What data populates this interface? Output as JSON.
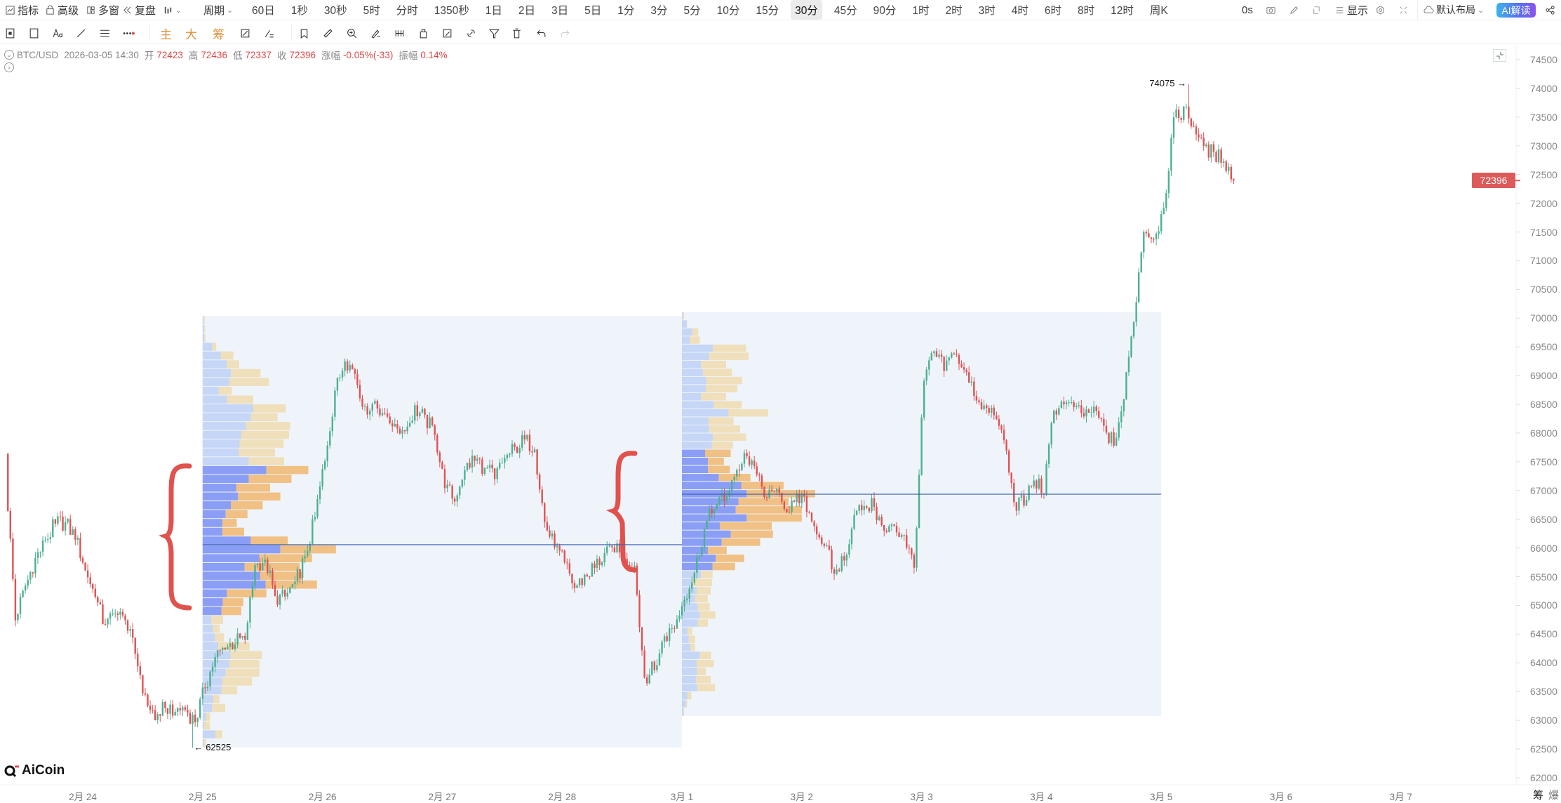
{
  "toolbar": {
    "indicators": "指标",
    "advanced": "高级",
    "multi_window": "多窗",
    "replay": "复盘",
    "period_label": "周期",
    "periods": [
      "60日",
      "1秒",
      "30秒",
      "5时",
      "分时",
      "1350秒",
      "1日",
      "2日",
      "3日",
      "5日",
      "1分",
      "3分",
      "5分",
      "10分",
      "15分",
      "30分",
      "45分",
      "90分",
      "1时",
      "2时",
      "3时",
      "4时",
      "6时",
      "8时",
      "12时",
      "周K"
    ],
    "selected_period": "30分",
    "countdown": "0s",
    "display": "显示",
    "layout": "默认布局",
    "ai": "AI解读"
  },
  "drawing_toolbar": {
    "main": "主",
    "big": "大",
    "chips": "筹"
  },
  "info": {
    "symbol": "BTC/USD",
    "datetime": "2026-03-05 14:30",
    "open_label": "开",
    "open": "72423",
    "high_label": "高",
    "high": "72436",
    "low_label": "低",
    "low": "72337",
    "close_label": "收",
    "close": "72396",
    "change_label": "涨幅",
    "change": "-0.05%(-33)",
    "amplitude_label": "振幅",
    "amplitude": "0.14%"
  },
  "logo": "AiCoin",
  "bottom_right": [
    "筹",
    "爆"
  ],
  "colors": {
    "up": "#4cb08f",
    "down": "#e05252",
    "price_tag": "#dd5a5a",
    "poc_line": "#3b5fae",
    "profile_bg": "#eff4fb",
    "buy_va": "#8b9ef6",
    "buy": "#c5d6f6",
    "sell_va": "#f0c084",
    "sell": "#efdfbb",
    "annotation": "#e0524e"
  },
  "chart_data": {
    "type": "candlestick",
    "symbol": "BTC/USD",
    "interval": "30m",
    "path_start": "2026-02-23 08:30",
    "path_step": "2h",
    "closes": [
      67390,
      64790,
      65310,
      65830,
      66090,
      66440,
      66440,
      66180,
      65660,
      65140,
      64620,
      64880,
      64710,
      64180,
      63400,
      63060,
      63230,
      63200,
      63200,
      62970,
      63580,
      64100,
      64270,
      64360,
      64440,
      65660,
      65830,
      65140,
      65140,
      65400,
      65830,
      66520,
      67560,
      68690,
      69300,
      69040,
      68430,
      68520,
      68340,
      68170,
      68000,
      68430,
      68260,
      68000,
      67040,
      66870,
      67390,
      67560,
      67390,
      67250,
      67530,
      67740,
      67880,
      67740,
      66440,
      66010,
      65740,
      65310,
      65480,
      65690,
      65860,
      65970,
      65830,
      65660,
      63750,
      63920,
      64440,
      64620,
      65140,
      65570,
      66350,
      66700,
      66870,
      67220,
      67650,
      67390,
      66870,
      66960,
      66700,
      66780,
      66870,
      66350,
      66090,
      65570,
      65830,
      66520,
      66780,
      66700,
      66260,
      66350,
      66210,
      65660,
      68950,
      69380,
      69120,
      69380,
      69120,
      68690,
      68430,
      68260,
      67910,
      66780,
      66780,
      67220,
      66960,
      68430,
      68520,
      68400,
      68290,
      68430,
      68080,
      67820,
      68600,
      69990,
      71550,
      71380,
      71900,
      73460,
      73630,
      73370,
      73030,
      72850,
      72770,
      72396
    ],
    "last_candle": {
      "time": "2026-03-05 14:30",
      "open": 72423,
      "high": 72436,
      "low": 72337,
      "close": 72396
    },
    "current_price": "72396",
    "marked_high": "74075",
    "marked_low": "62525",
    "y_ticks": [
      "74500",
      "74000",
      "73500",
      "73000",
      "72500",
      "72000",
      "71500",
      "71000",
      "70500",
      "70000",
      "69500",
      "69000",
      "68500",
      "68000",
      "67500",
      "67000",
      "66500",
      "66000",
      "65500",
      "65000",
      "64500",
      "64000",
      "63500",
      "63000",
      "62500",
      "62000"
    ],
    "ylim": [
      62000,
      74500
    ],
    "x_ticks": [
      "2月 24",
      "2月 25",
      "2月 26",
      "2月 27",
      "2月 28",
      "3月 1",
      "3月 2",
      "3月 3",
      "3月 4",
      "3月 5",
      "3月 6",
      "3月 7"
    ],
    "x_tick_dates": [
      "2026-02-24",
      "2026-02-25",
      "2026-02-26",
      "2026-02-27",
      "2026-02-28",
      "2026-03-01",
      "2026-03-02",
      "2026-03-03",
      "2026-03-04",
      "2026-03-05",
      "2026-03-06",
      "2026-03-07"
    ],
    "volume_profiles": [
      {
        "from": "2026-02-25 00:00",
        "to": "2026-02-28 23:30",
        "price_high": 70040,
        "price_low": 62525,
        "poc": 66057,
        "value_area": [
          17,
          33
        ],
        "buy": [
          3,
          4,
          4,
          23,
          44,
          59,
          69,
          65,
          39,
          59,
          123,
          117,
          105,
          94,
          90,
          88,
          112,
          155,
          112,
          82,
          86,
          69,
          56,
          48,
          48,
          117,
          189,
          138,
          102,
          140,
          153,
          59,
          49,
          46,
          21,
          25,
          30,
          38,
          68,
          65,
          56,
          48,
          46,
          26,
          23,
          8,
          4,
          31,
          3
        ],
        "sell": [
          2,
          2,
          3,
          10,
          31,
          30,
          72,
          96,
          32,
          64,
          79,
          65,
          108,
          116,
          107,
          88,
          86,
          102,
          104,
          82,
          103,
          77,
          53,
          35,
          53,
          90,
          135,
          128,
          134,
          103,
          125,
          96,
          50,
          48,
          29,
          17,
          22,
          76,
          76,
          73,
          82,
          72,
          38,
          15,
          32,
          10,
          14,
          17,
          5
        ]
      },
      {
        "from": "2026-03-01 00:00",
        "to": "2026-03-04 23:30",
        "price_high": 70110,
        "price_low": 63075,
        "poc": 66936,
        "value_area": [
          17,
          31
        ],
        "buy": [
          3,
          15,
          33,
          25,
          99,
          87,
          61,
          67,
          78,
          76,
          61,
          101,
          149,
          85,
          87,
          99,
          96,
          74,
          83,
          83,
          118,
          190,
          207,
          181,
          172,
          207,
          121,
          156,
          127,
          83,
          108,
          98,
          61,
          33,
          47,
          42,
          51,
          57,
          51,
          17,
          22,
          27,
          57,
          47,
          49,
          45,
          49,
          17,
          12,
          5
        ],
        "sell": [
          4,
          2,
          19,
          32,
          106,
          126,
          80,
          93,
          114,
          101,
          80,
          90,
          126,
          80,
          99,
          106,
          67,
          82,
          51,
          70,
          101,
          135,
          219,
          160,
          211,
          176,
          166,
          135,
          123,
          60,
          91,
          72,
          37,
          63,
          45,
          41,
          38,
          50,
          32,
          16,
          20,
          15,
          36,
          55,
          28,
          47,
          57,
          13,
          5,
          2
        ]
      }
    ]
  }
}
